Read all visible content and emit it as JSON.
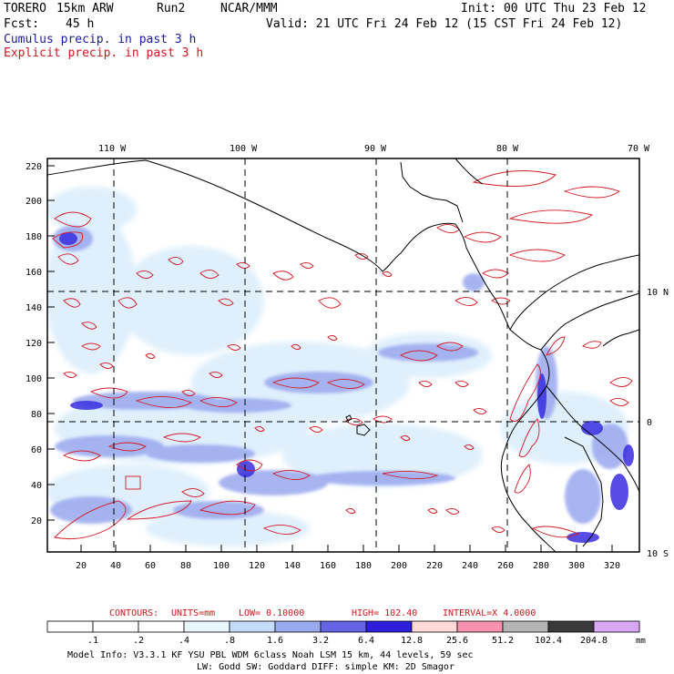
{
  "header": {
    "model": "TORERO",
    "resolution": "15km ARW",
    "run": "Run2",
    "org": "NCAR/MMM",
    "init": "Init: 00 UTC Thu 23 Feb 12",
    "fcst_label": "Fcst:",
    "fcst_value": "45 h",
    "valid": "Valid: 21 UTC Fri 24 Feb 12 (15 CST Fri 24 Feb 12)",
    "line1": "Cumulus precip. in past 3 h",
    "line2": "Explicit precip. in past 3 h",
    "line1_color": "#1a1aa0",
    "line2_color": "#d0161e"
  },
  "map": {
    "lon_labels": [
      "110 W",
      "100 W",
      "90 W",
      "80 W",
      "70 W"
    ],
    "lat_labels": [
      "10 N",
      "0",
      "10 S"
    ],
    "y_ticks": [
      "220",
      "200",
      "180",
      "160",
      "140",
      "120",
      "100",
      "80",
      "60",
      "40",
      "20"
    ],
    "x_ticks": [
      "20",
      "40",
      "60",
      "80",
      "100",
      "120",
      "140",
      "160",
      "180",
      "200",
      "220",
      "240",
      "260",
      "280",
      "300",
      "320"
    ]
  },
  "contour_info": {
    "contours": "CONTOURS:",
    "units": "UNITS=mm",
    "low": "LOW= 0.10000",
    "high": "HIGH= 102.40",
    "interval": "INTERVAL=X 4.0000",
    "color": "#d0161e"
  },
  "colorbar": {
    "labels": [
      ".1",
      ".2",
      ".4",
      ".8",
      "1.6",
      "3.2",
      "6.4",
      "12.8",
      "25.6",
      "51.2",
      "102.4",
      "204.8"
    ],
    "colors": [
      "#ffffff",
      "#ffffff",
      "#ffffff",
      "#e8f7ff",
      "#c4dcf8",
      "#9aa8ee",
      "#6464e4",
      "#2e1edc",
      "#ffd8d8",
      "#f890b0",
      "#b4b4b4",
      "#3a3a3a",
      "#d8a8f4"
    ],
    "unit": "mm"
  },
  "footer": {
    "line1": "Model Info: V3.3.1   KF    YSU PBL  WDM 6class  Noah LSM  15 km,   44 levels,   59 sec",
    "line2": "LW: Godd SW: Goddard DIFF: simple KM: 2D Smagor"
  }
}
